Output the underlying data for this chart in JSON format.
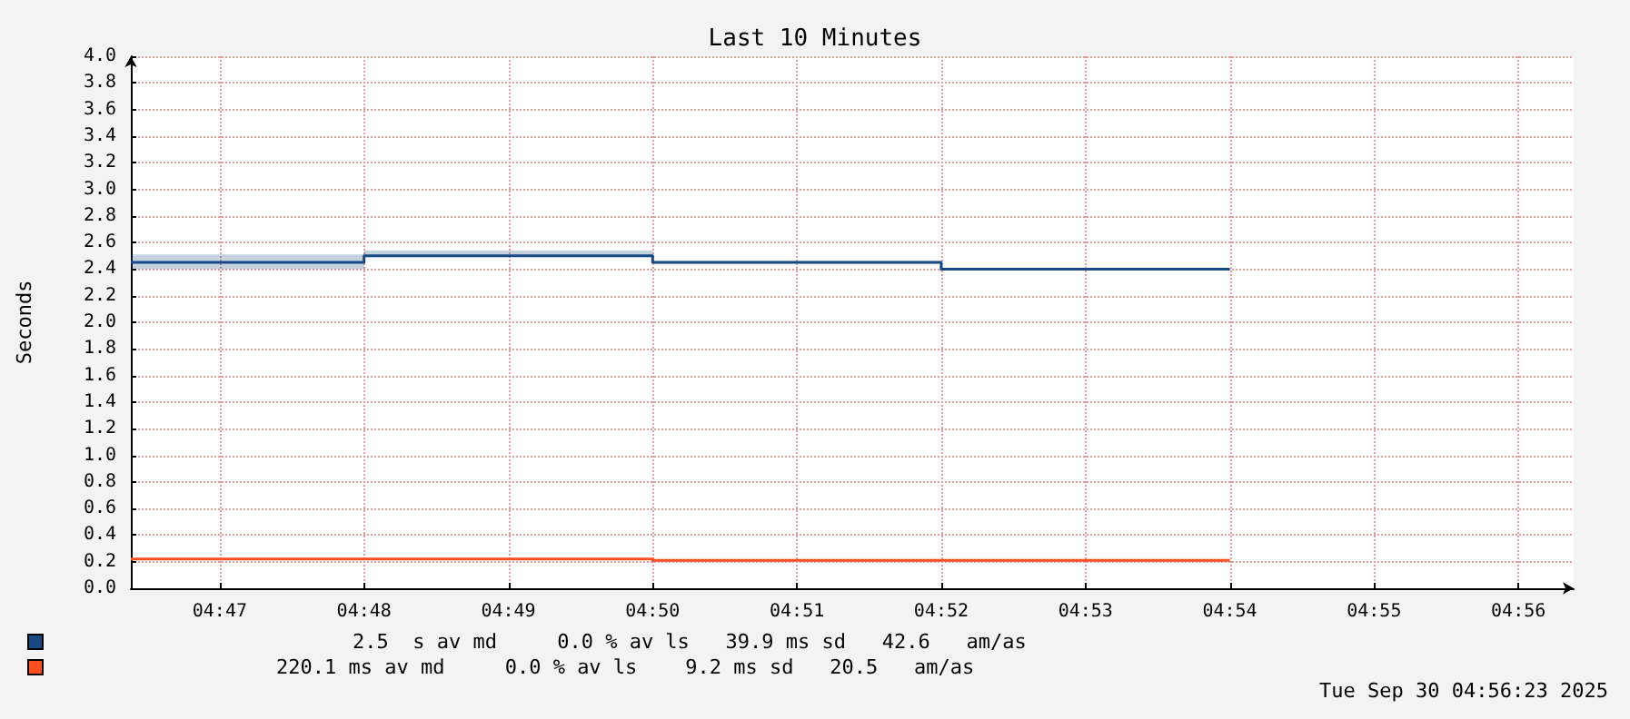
{
  "chart_data": {
    "type": "step",
    "title": "Last 10 Minutes",
    "ylabel": "Seconds",
    "xlim": [
      4.77306,
      4.93972
    ],
    "xticks": [
      {
        "value": 4.783333,
        "label": "04:47"
      },
      {
        "value": 4.8,
        "label": "04:48"
      },
      {
        "value": 4.816667,
        "label": "04:49"
      },
      {
        "value": 4.833333,
        "label": "04:50"
      },
      {
        "value": 4.85,
        "label": "04:51"
      },
      {
        "value": 4.866667,
        "label": "04:52"
      },
      {
        "value": 4.883333,
        "label": "04:53"
      },
      {
        "value": 4.9,
        "label": "04:54"
      },
      {
        "value": 4.916667,
        "label": "04:55"
      },
      {
        "value": 4.933333,
        "label": "04:56"
      }
    ],
    "ylim": [
      0,
      4.0
    ],
    "yticks": [
      {
        "value": 0,
        "label": "0.0"
      },
      0.2,
      0.4,
      0.6,
      0.8,
      {
        "value": 1,
        "label": "1.0"
      },
      1.2,
      1.4,
      1.6,
      1.8,
      {
        "value": 2,
        "label": "2.0"
      },
      2.2,
      2.4,
      2.6,
      2.8,
      {
        "value": 3,
        "label": "3.0"
      },
      3.2,
      3.4,
      3.6,
      3.8,
      {
        "value": 4,
        "label": "4.0"
      }
    ],
    "x": [
      4.77306,
      4.8,
      4.833333,
      4.866667,
      4.9
    ],
    "series": [
      {
        "color": "#174a85",
        "values": [
          2.45,
          2.5,
          2.45,
          2.4,
          2.4
        ],
        "lower": [
          2.4,
          2.49,
          2.44,
          2.39,
          2.39
        ],
        "upper": [
          2.51,
          2.54,
          2.46,
          2.41,
          2.41
        ]
      },
      {
        "color": "#ff4f1f",
        "values": [
          0.22,
          0.22,
          0.21,
          0.21,
          0.21
        ]
      }
    ],
    "grid": true,
    "marker": "none",
    "line_style": "solid",
    "annotations": [
      "2.5  s av md     0.0 % av ls   39.9 ms sd   42.6   am/as",
      "220.1 ms av md     0.0 % av ls    9.2 ms sd   20.5   am/as",
      "Tue Sep 30 04:56:23 2025"
    ]
  }
}
